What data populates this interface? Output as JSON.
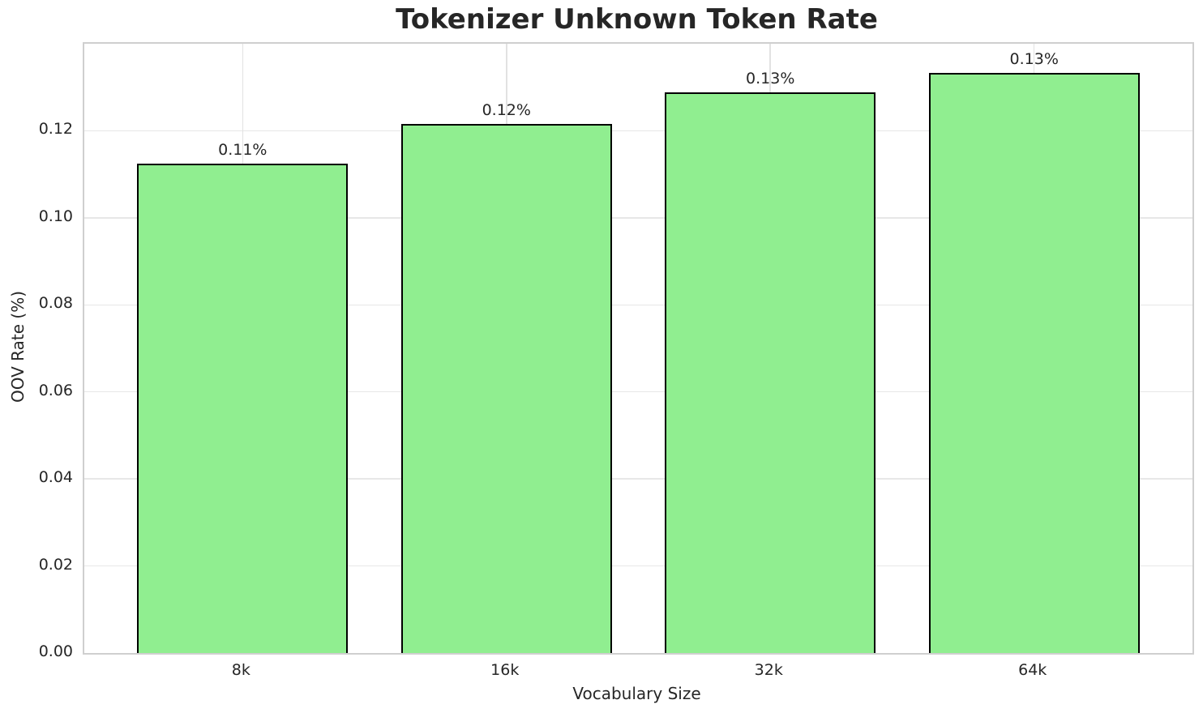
{
  "chart_data": {
    "type": "bar",
    "title": "Tokenizer Unknown Token Rate",
    "xlabel": "Vocabulary Size",
    "ylabel": "OOV Rate (%)",
    "categories": [
      "8k",
      "16k",
      "32k",
      "64k"
    ],
    "values": [
      0.1125,
      0.1215,
      0.1288,
      0.1333
    ],
    "bar_labels": [
      "0.11%",
      "0.12%",
      "0.13%",
      "0.13%"
    ],
    "ylim": [
      0,
      0.14
    ],
    "yticks": [
      0.0,
      0.02,
      0.04,
      0.06,
      0.08,
      0.1,
      0.12
    ],
    "ytick_labels": [
      "0.00",
      "0.02",
      "0.04",
      "0.06",
      "0.08",
      "0.10",
      "0.12"
    ],
    "grid": true,
    "legend": "none",
    "bar_width_ratio": 0.8,
    "x_padding_ratio": 0.6,
    "colors": {
      "bar_fill": "#90EE90",
      "bar_edge": "#000000",
      "grid_h": "#e7e7e7",
      "grid_v": "#e2e2e2",
      "spine": "#cfcfcf",
      "text": "#262626",
      "background": "#ffffff"
    }
  }
}
